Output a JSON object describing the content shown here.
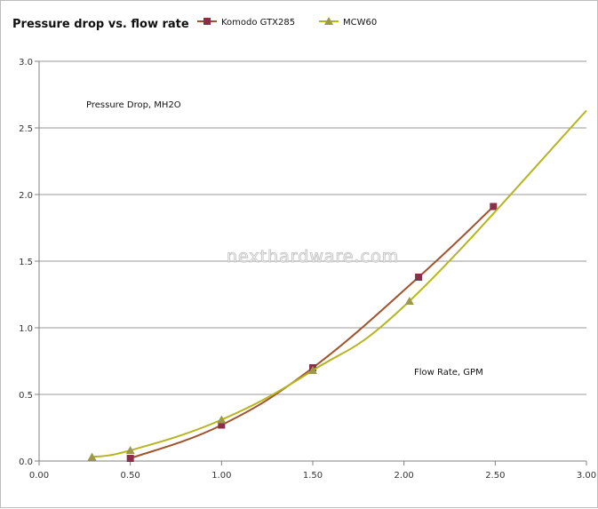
{
  "chart_data": {
    "type": "scatter",
    "title": "Pressure drop vs. flow rate",
    "ylabel": "Pressure Drop, MH2O",
    "xlabel": "Flow Rate, GPM",
    "xlim": [
      0,
      3
    ],
    "ylim": [
      0,
      3
    ],
    "x_ticks": [
      "0.00",
      "0.50",
      "1.00",
      "1.50",
      "2.00",
      "2.50",
      "3.00"
    ],
    "y_ticks": [
      "0.0",
      "0.5",
      "1.0",
      "1.5",
      "2.0",
      "2.5",
      "3.0"
    ],
    "grid": "horizontal",
    "legend_position": "top",
    "series": [
      {
        "name": "Komodo GTX285",
        "color": "#8b2e4a",
        "line_color": "#a0522d",
        "marker": "square",
        "points": [
          [
            0.5,
            0.02
          ],
          [
            1.0,
            0.27
          ],
          [
            1.5,
            0.7
          ],
          [
            2.08,
            1.38
          ],
          [
            2.49,
            1.91
          ]
        ]
      },
      {
        "name": "MCW60",
        "color": "#9c9a4a",
        "line_color": "#b5b520",
        "marker": "triangle",
        "points": [
          [
            0.29,
            0.03
          ],
          [
            0.5,
            0.08
          ],
          [
            1.0,
            0.31
          ],
          [
            1.5,
            0.68
          ],
          [
            2.03,
            1.2
          ],
          [
            3.0,
            2.63
          ]
        ]
      }
    ],
    "watermark": "nexthardware.com"
  }
}
